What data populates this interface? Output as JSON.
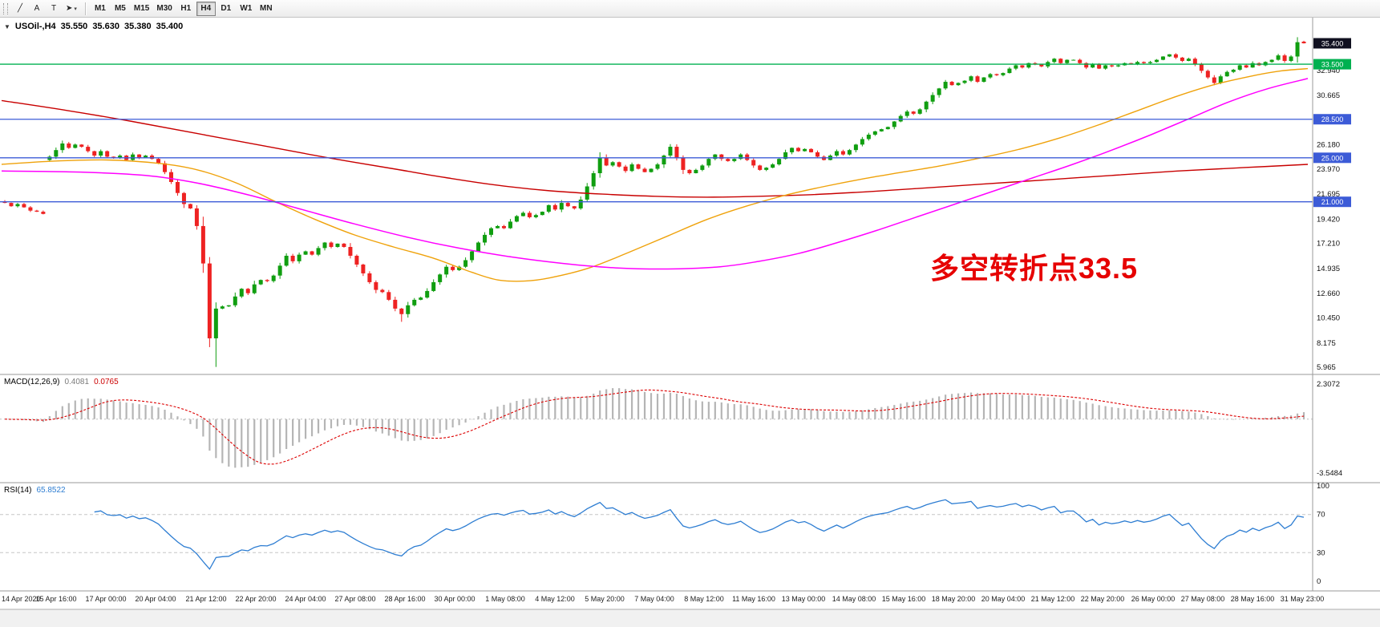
{
  "toolbar": {
    "tools": [
      {
        "name": "trendline",
        "glyph": "╱"
      },
      {
        "name": "text-label",
        "glyph": "A"
      },
      {
        "name": "text-box",
        "glyph": "T"
      },
      {
        "name": "arrow",
        "glyph": "➤",
        "caret": true
      }
    ],
    "timeframes": [
      {
        "label": "M1"
      },
      {
        "label": "M5"
      },
      {
        "label": "M15"
      },
      {
        "label": "M30"
      },
      {
        "label": "H1"
      },
      {
        "label": "H4",
        "active": true
      },
      {
        "label": "D1"
      },
      {
        "label": "W1"
      },
      {
        "label": "MN"
      }
    ]
  },
  "chart": {
    "symbol_header": {
      "collapse_glyph": "▼",
      "title": "USOil-,H4",
      "open": "35.550",
      "high": "35.630",
      "low": "35.380",
      "close": "35.400"
    },
    "annotation": {
      "text": "多空转折点33.5"
    },
    "colors": {
      "up": "#109e10",
      "down": "#ee2222",
      "ma_red": "#c80000",
      "ma_orange": "#efa20b",
      "ma_magenta": "#ff00ff",
      "hline_blue": "#3c5bd7",
      "hline_green": "#00b050",
      "macd_hist": "#b5b5b5",
      "macd_signal": "#dd0000",
      "rsi": "#2d7dd2",
      "price_box": "#101020",
      "axis_gray": "#9a9a9a"
    },
    "current_price": {
      "value": 35.4,
      "label": "35.400"
    },
    "hlines": [
      {
        "price": 33.5,
        "label": "33.500",
        "color_key": "hline_green"
      },
      {
        "price": 28.5,
        "label": "28.500",
        "color_key": "hline_blue"
      },
      {
        "price": 25.0,
        "label": "25.000",
        "color_key": "hline_blue"
      },
      {
        "price": 21.0,
        "label": "21.000",
        "color_key": "hline_blue"
      }
    ],
    "axis_ticks": [
      "32.940",
      "30.665",
      "26.180",
      "23.970",
      "21.695",
      "19.420",
      "17.210",
      "14.935",
      "12.660",
      "10.450",
      "8.175",
      "5.965"
    ],
    "candles": {
      "closes": [
        20.9,
        20.6,
        20.8,
        20.5,
        20.2,
        20.1,
        19.9,
        25.1,
        25.7,
        26.3,
        25.9,
        26.2,
        26.0,
        25.6,
        25.2,
        25.6,
        25.1,
        25.0,
        25.2,
        24.8,
        25.3,
        25.0,
        25.2,
        24.9,
        24.5,
        23.7,
        22.8,
        21.8,
        20.8,
        20.4,
        18.8,
        15.4,
        8.6,
        11.3,
        11.5,
        11.6,
        12.4,
        13.1,
        12.7,
        13.5,
        13.9,
        13.8,
        14.3,
        15.2,
        16.1,
        15.6,
        16.2,
        16.5,
        16.2,
        16.8,
        17.3,
        16.9,
        17.2,
        16.9,
        16.1,
        15.3,
        14.5,
        13.7,
        13.0,
        12.8,
        12.1,
        11.3,
        10.8,
        11.6,
        12.1,
        12.3,
        12.9,
        13.7,
        14.4,
        15.1,
        14.8,
        15.1,
        15.7,
        16.5,
        17.3,
        18.0,
        18.6,
        18.8,
        18.6,
        19.2,
        19.7,
        20.0,
        19.6,
        19.8,
        20.1,
        20.7,
        20.3,
        20.9,
        20.6,
        20.4,
        21.2,
        22.4,
        23.6,
        25.0,
        24.3,
        24.6,
        24.2,
        23.8,
        24.4,
        24.0,
        23.7,
        24.0,
        24.4,
        25.2,
        26.0,
        25.0,
        23.9,
        23.6,
        23.9,
        24.3,
        24.9,
        25.3,
        24.9,
        24.7,
        24.9,
        25.3,
        24.8,
        24.3,
        23.9,
        24.1,
        24.4,
        24.9,
        25.5,
        25.9,
        25.6,
        25.8,
        25.5,
        25.1,
        24.8,
        25.2,
        25.6,
        25.3,
        25.7,
        26.2,
        26.7,
        27.1,
        27.4,
        27.6,
        27.8,
        28.3,
        28.8,
        29.2,
        29.0,
        29.4,
        30.1,
        30.7,
        31.3,
        31.9,
        31.6,
        31.8,
        32.0,
        32.4,
        31.9,
        32.3,
        32.6,
        32.5,
        32.7,
        33.1,
        33.4,
        33.2,
        33.6,
        33.5,
        33.3,
        33.7,
        34.0,
        33.6,
        33.9,
        33.9,
        33.6,
        33.2,
        33.5,
        33.1,
        33.4,
        33.3,
        33.4,
        33.6,
        33.5,
        33.7,
        33.6,
        33.7,
        33.9,
        34.2,
        34.4,
        34.1,
        33.8,
        34.0,
        33.5,
        32.9,
        32.3,
        31.8,
        32.4,
        32.8,
        33.0,
        33.4,
        33.2,
        33.6,
        33.4,
        33.7,
        33.9,
        34.3,
        33.8,
        34.2,
        35.5,
        35.4
      ],
      "overrides": {
        "7": {
          "o": 24.8
        },
        "32": {
          "l": 7.8
        },
        "33": {
          "l": 6.0
        },
        "62": {
          "l": 10.1
        },
        "203": {
          "o": 35.55,
          "h": 35.63,
          "l": 35.38
        }
      }
    },
    "ma_lines": [
      {
        "name": "ma-red-slow",
        "color_key": "ma_red",
        "width": 1.4,
        "points": [
          [
            0,
            30.2
          ],
          [
            0.05,
            29.3
          ],
          [
            0.1,
            28.3
          ],
          [
            0.15,
            27.2
          ],
          [
            0.2,
            26.1
          ],
          [
            0.25,
            25.0
          ],
          [
            0.3,
            24.0
          ],
          [
            0.34,
            23.2
          ],
          [
            0.38,
            22.5
          ],
          [
            0.42,
            22.0
          ],
          [
            0.46,
            21.7
          ],
          [
            0.5,
            21.5
          ],
          [
            0.54,
            21.42
          ],
          [
            0.58,
            21.5
          ],
          [
            0.62,
            21.65
          ],
          [
            0.66,
            21.9
          ],
          [
            0.7,
            22.2
          ],
          [
            0.75,
            22.6
          ],
          [
            0.8,
            23.0
          ],
          [
            0.85,
            23.4
          ],
          [
            0.9,
            23.8
          ],
          [
            0.95,
            24.1
          ],
          [
            1,
            24.4
          ]
        ]
      },
      {
        "name": "ma-orange",
        "color_key": "ma_orange",
        "width": 1.4,
        "points": [
          [
            0,
            24.4
          ],
          [
            0.04,
            24.7
          ],
          [
            0.08,
            24.8
          ],
          [
            0.12,
            24.5
          ],
          [
            0.15,
            23.9
          ],
          [
            0.18,
            22.7
          ],
          [
            0.21,
            21.0
          ],
          [
            0.24,
            19.4
          ],
          [
            0.27,
            18.0
          ],
          [
            0.3,
            16.9
          ],
          [
            0.33,
            15.9
          ],
          [
            0.36,
            14.6
          ],
          [
            0.38,
            13.9
          ],
          [
            0.4,
            13.8
          ],
          [
            0.42,
            14.1
          ],
          [
            0.45,
            15.0
          ],
          [
            0.48,
            16.4
          ],
          [
            0.51,
            17.9
          ],
          [
            0.54,
            19.4
          ],
          [
            0.57,
            20.6
          ],
          [
            0.6,
            21.6
          ],
          [
            0.63,
            22.4
          ],
          [
            0.66,
            23.1
          ],
          [
            0.69,
            23.7
          ],
          [
            0.72,
            24.3
          ],
          [
            0.75,
            25.0
          ],
          [
            0.78,
            25.8
          ],
          [
            0.81,
            26.8
          ],
          [
            0.84,
            28.0
          ],
          [
            0.87,
            29.3
          ],
          [
            0.9,
            30.6
          ],
          [
            0.93,
            31.7
          ],
          [
            0.96,
            32.5
          ],
          [
            0.98,
            32.9
          ],
          [
            1,
            33.1
          ]
        ]
      },
      {
        "name": "ma-magenta",
        "color_key": "ma_magenta",
        "width": 1.5,
        "points": [
          [
            0,
            23.8
          ],
          [
            0.06,
            23.7
          ],
          [
            0.11,
            23.4
          ],
          [
            0.15,
            22.7
          ],
          [
            0.19,
            21.6
          ],
          [
            0.23,
            20.3
          ],
          [
            0.27,
            19.0
          ],
          [
            0.31,
            17.8
          ],
          [
            0.35,
            16.8
          ],
          [
            0.39,
            16.0
          ],
          [
            0.43,
            15.4
          ],
          [
            0.47,
            15.0
          ],
          [
            0.51,
            14.9
          ],
          [
            0.55,
            15.1
          ],
          [
            0.58,
            15.6
          ],
          [
            0.61,
            16.3
          ],
          [
            0.64,
            17.3
          ],
          [
            0.67,
            18.4
          ],
          [
            0.7,
            19.6
          ],
          [
            0.73,
            20.8
          ],
          [
            0.76,
            22.0
          ],
          [
            0.79,
            23.2
          ],
          [
            0.82,
            24.4
          ],
          [
            0.85,
            25.7
          ],
          [
            0.88,
            27.1
          ],
          [
            0.91,
            28.6
          ],
          [
            0.94,
            30.1
          ],
          [
            0.97,
            31.3
          ],
          [
            1,
            32.2
          ]
        ]
      }
    ]
  },
  "macd": {
    "header": "MACD(12,26,9)",
    "value_main": "0.4081",
    "value_signal": "0.0765",
    "axis_max": "2.3072",
    "axis_min": "-3.5484",
    "params": {
      "fast": 12,
      "slow": 26,
      "signal": 9
    }
  },
  "rsi": {
    "header": "RSI(14)",
    "value": "65.8522",
    "period": 14,
    "levels": [
      70,
      30
    ],
    "axis_labels": [
      "100",
      "70",
      "30",
      "0"
    ]
  },
  "time_axis": {
    "labels": [
      "14 Apr 2020",
      "15 Apr 16:00",
      "17 Apr 00:00",
      "20 Apr 04:00",
      "21 Apr 12:00",
      "22 Apr 20:00",
      "24 Apr 04:00",
      "27 Apr 08:00",
      "28 Apr 16:00",
      "30 Apr 00:00",
      "1 May 08:00",
      "4 May 12:00",
      "5 May 20:00",
      "7 May 04:00",
      "8 May 12:00",
      "11 May 16:00",
      "13 May 00:00",
      "14 May 08:00",
      "15 May 16:00",
      "18 May 20:00",
      "20 May 04:00",
      "21 May 12:00",
      "22 May 20:00",
      "26 May 00:00",
      "27 May 08:00",
      "28 May 16:00",
      "31 May 23:00"
    ]
  }
}
